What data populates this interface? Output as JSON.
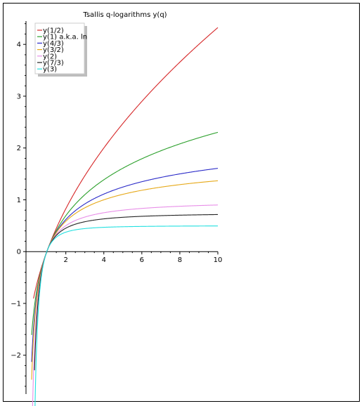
{
  "chart_data": {
    "type": "line",
    "title": "Tsallis q-logarithms y(q)",
    "xlabel": "",
    "ylabel": "",
    "xlim": [
      0.2,
      10
    ],
    "ylim": [
      -2.75,
      4.45
    ],
    "x_ticks": [
      2,
      4,
      6,
      8,
      10
    ],
    "y_ticks": [
      -2,
      -1,
      0,
      1,
      2,
      3,
      4
    ],
    "grid": false,
    "legend_position": "top-left",
    "series": [
      {
        "name": "y(1/2)",
        "q": 0.5,
        "color": "#d62728",
        "x_start": 0.3,
        "points": [
          [
            0.3,
            -0.905
          ],
          [
            0.5,
            -0.586
          ],
          [
            1,
            0
          ],
          [
            2,
            0.828
          ],
          [
            4,
            2.0
          ],
          [
            6,
            2.899
          ],
          [
            8,
            3.657
          ],
          [
            10,
            4.325
          ]
        ]
      },
      {
        "name": "y(1) a.k.a. ln",
        "q": 1,
        "color": "#2ca02c",
        "x_start": 0.2,
        "points": [
          [
            0.2,
            -1.609
          ],
          [
            0.5,
            -0.693
          ],
          [
            1,
            0
          ],
          [
            2,
            0.693
          ],
          [
            4,
            1.386
          ],
          [
            6,
            1.792
          ],
          [
            8,
            2.079
          ],
          [
            10,
            2.303
          ]
        ]
      },
      {
        "name": "y(4/3)",
        "q": 1.3333333,
        "color": "#2a2ac8",
        "x_start": 0.2,
        "points": [
          [
            0.2,
            -2.13
          ],
          [
            0.5,
            -0.78
          ],
          [
            1,
            0
          ],
          [
            2,
            0.619
          ],
          [
            4,
            1.11
          ],
          [
            6,
            1.349
          ],
          [
            8,
            1.5
          ],
          [
            10,
            1.608
          ]
        ]
      },
      {
        "name": "y(3/2)",
        "q": 1.5,
        "color": "#e6a817",
        "x_start": 0.2,
        "points": [
          [
            0.2,
            -2.472
          ],
          [
            0.5,
            -0.828
          ],
          [
            1,
            0
          ],
          [
            2,
            0.586
          ],
          [
            4,
            1.0
          ],
          [
            6,
            1.184
          ],
          [
            8,
            1.293
          ],
          [
            10,
            1.368
          ]
        ]
      },
      {
        "name": "y(2)",
        "q": 2,
        "color": "#e88ee8",
        "x_start": 0.25,
        "points": [
          [
            0.25,
            -3.0
          ],
          [
            0.5,
            -1.0
          ],
          [
            1,
            0
          ],
          [
            2,
            0.5
          ],
          [
            4,
            0.75
          ],
          [
            6,
            0.833
          ],
          [
            8,
            0.875
          ],
          [
            10,
            0.9
          ]
        ]
      },
      {
        "name": "y(7/3)",
        "q": 2.3333333,
        "color": "#222222",
        "x_start": 0.35,
        "points": [
          [
            0.35,
            -1.8
          ],
          [
            0.5,
            -1.14
          ],
          [
            1,
            0
          ],
          [
            2,
            0.455
          ],
          [
            4,
            0.634
          ],
          [
            6,
            0.683
          ],
          [
            8,
            0.703
          ],
          [
            10,
            0.714
          ]
        ]
      },
      {
        "name": "y(3)",
        "q": 3,
        "color": "#22e0e0",
        "x_start": 0.37,
        "points": [
          [
            0.37,
            -3.15
          ],
          [
            0.5,
            -1.5
          ],
          [
            1,
            0
          ],
          [
            2,
            0.375
          ],
          [
            4,
            0.469
          ],
          [
            6,
            0.486
          ],
          [
            8,
            0.492
          ],
          [
            10,
            0.495
          ]
        ]
      }
    ]
  }
}
